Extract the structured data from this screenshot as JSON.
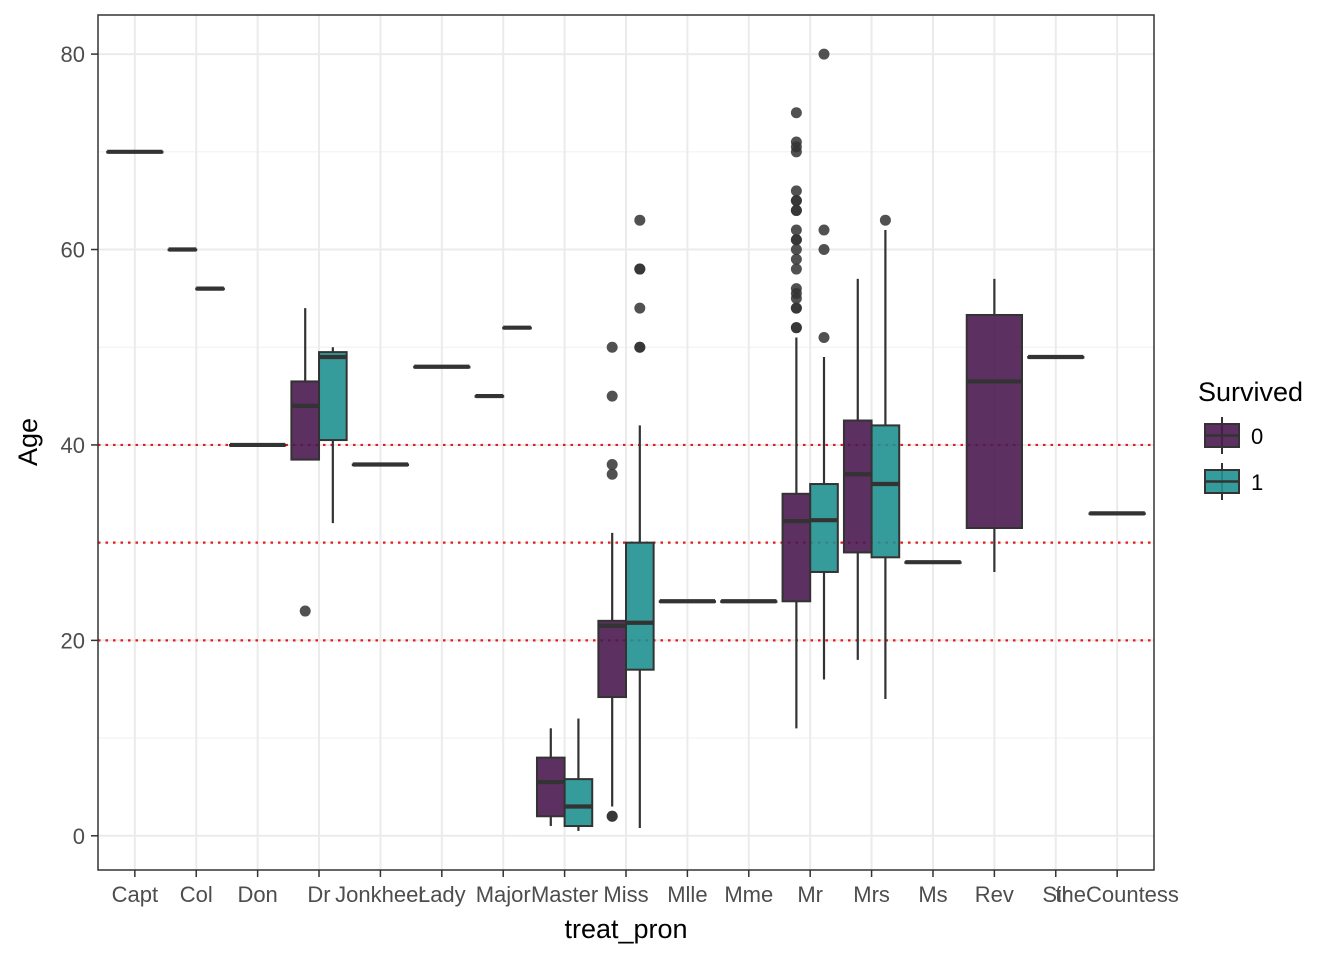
{
  "chart_data": {
    "type": "boxplot",
    "xlabel": "treat_pron",
    "ylabel": "Age",
    "ylim": [
      -3.5,
      84
    ],
    "yticks": [
      0,
      20,
      40,
      60,
      80
    ],
    "grid": true,
    "legend_position": "right",
    "legend_title": "Survived",
    "colors": {
      "0": "#4a1a4f",
      "1": "#1f9190",
      "hline": "#e41a1c",
      "box_line": "#333333"
    },
    "reference_lines": [
      20,
      30,
      40
    ],
    "categories": [
      "Capt",
      "Col",
      "Don",
      "Dr",
      "Jonkheer",
      "Lady",
      "Major",
      "Master",
      "Miss",
      "Mlle",
      "Mme",
      "Mr",
      "Mrs",
      "Ms",
      "Rev",
      "Sir",
      "theCountess"
    ],
    "series": [
      {
        "name": "0",
        "levels_present": [
          "Capt",
          "Col",
          "Don",
          "Dr",
          "Jonkheer",
          "Major",
          "Master",
          "Miss",
          "Mr",
          "Mrs",
          "Rev"
        ]
      },
      {
        "name": "1",
        "levels_present": [
          "Col",
          "Dr",
          "Lady",
          "Major",
          "Master",
          "Miss",
          "Mlle",
          "Mme",
          "Mr",
          "Mrs",
          "Ms",
          "Sir",
          "theCountess"
        ]
      }
    ],
    "boxes": [
      {
        "category": "Capt",
        "group": "0",
        "slot": "full",
        "min": 70,
        "q1": 70,
        "median": 70,
        "q3": 70,
        "max": 70,
        "outliers": []
      },
      {
        "category": "Col",
        "group": "0",
        "slot": "left",
        "min": 60,
        "q1": 60,
        "median": 60,
        "q3": 60,
        "max": 60,
        "outliers": []
      },
      {
        "category": "Col",
        "group": "1",
        "slot": "right",
        "min": 56,
        "q1": 56,
        "median": 56,
        "q3": 56,
        "max": 56,
        "outliers": []
      },
      {
        "category": "Don",
        "group": "0",
        "slot": "full",
        "min": 40,
        "q1": 40,
        "median": 40,
        "q3": 40,
        "max": 40,
        "outliers": []
      },
      {
        "category": "Dr",
        "group": "0",
        "slot": "left",
        "min": 38.5,
        "q1": 38.5,
        "median": 44,
        "q3": 46.5,
        "max": 54,
        "outliers": [
          23
        ]
      },
      {
        "category": "Dr",
        "group": "1",
        "slot": "right",
        "min": 32,
        "q1": 40.5,
        "median": 49,
        "q3": 49.5,
        "max": 50,
        "outliers": []
      },
      {
        "category": "Jonkheer",
        "group": "0",
        "slot": "full",
        "min": 38,
        "q1": 38,
        "median": 38,
        "q3": 38,
        "max": 38,
        "outliers": []
      },
      {
        "category": "Lady",
        "group": "1",
        "slot": "full",
        "min": 48,
        "q1": 48,
        "median": 48,
        "q3": 48,
        "max": 48,
        "outliers": []
      },
      {
        "category": "Major",
        "group": "0",
        "slot": "left",
        "min": 45,
        "q1": 45,
        "median": 45,
        "q3": 45,
        "max": 45,
        "outliers": []
      },
      {
        "category": "Major",
        "group": "1",
        "slot": "right",
        "min": 52,
        "q1": 52,
        "median": 52,
        "q3": 52,
        "max": 52,
        "outliers": []
      },
      {
        "category": "Master",
        "group": "0",
        "slot": "left",
        "min": 1,
        "q1": 2,
        "median": 5.5,
        "q3": 8,
        "max": 11,
        "outliers": []
      },
      {
        "category": "Master",
        "group": "1",
        "slot": "right",
        "min": 0.5,
        "q1": 1,
        "median": 3,
        "q3": 5.8,
        "max": 12,
        "outliers": []
      },
      {
        "category": "Miss",
        "group": "0",
        "slot": "left",
        "min": 3,
        "q1": 14.2,
        "median": 21.5,
        "q3": 22,
        "max": 31,
        "outliers": [
          2,
          2,
          37,
          38,
          45,
          50
        ]
      },
      {
        "category": "Miss",
        "group": "1",
        "slot": "right",
        "min": 0.8,
        "q1": 17,
        "median": 21.8,
        "q3": 30,
        "max": 42,
        "outliers": [
          50,
          50,
          54,
          58,
          58,
          63
        ]
      },
      {
        "category": "Mlle",
        "group": "1",
        "slot": "full",
        "min": 24,
        "q1": 24,
        "median": 24,
        "q3": 24,
        "max": 24,
        "outliers": []
      },
      {
        "category": "Mme",
        "group": "1",
        "slot": "full",
        "min": 24,
        "q1": 24,
        "median": 24,
        "q3": 24,
        "max": 24,
        "outliers": []
      },
      {
        "category": "Mr",
        "group": "0",
        "slot": "left",
        "min": 11,
        "q1": 24,
        "median": 32.2,
        "q3": 35,
        "max": 51,
        "outliers": [
          52,
          52,
          54,
          54,
          55,
          55.5,
          56,
          58,
          59,
          60,
          61,
          61,
          62,
          64,
          64,
          65,
          65,
          66,
          70,
          70.5,
          71,
          74
        ]
      },
      {
        "category": "Mr",
        "group": "1",
        "slot": "right",
        "min": 16,
        "q1": 27,
        "median": 32.3,
        "q3": 36,
        "max": 49,
        "outliers": [
          51,
          60,
          62,
          80
        ]
      },
      {
        "category": "Mrs",
        "group": "0",
        "slot": "left",
        "min": 18,
        "q1": 29,
        "median": 37,
        "q3": 42.5,
        "max": 57,
        "outliers": []
      },
      {
        "category": "Mrs",
        "group": "1",
        "slot": "right",
        "min": 14,
        "q1": 28.5,
        "median": 36,
        "q3": 42,
        "max": 62,
        "outliers": [
          63
        ]
      },
      {
        "category": "Ms",
        "group": "1",
        "slot": "full",
        "min": 28,
        "q1": 28,
        "median": 28,
        "q3": 28,
        "max": 28,
        "outliers": []
      },
      {
        "category": "Rev",
        "group": "0",
        "slot": "full",
        "min": 27,
        "q1": 31.5,
        "median": 46.5,
        "q3": 53.3,
        "max": 57,
        "outliers": []
      },
      {
        "category": "Sir",
        "group": "1",
        "slot": "full",
        "min": 49,
        "q1": 49,
        "median": 49,
        "q3": 49,
        "max": 49,
        "outliers": []
      },
      {
        "category": "theCountess",
        "group": "1",
        "slot": "full",
        "min": 33,
        "q1": 33,
        "median": 33,
        "q3": 33,
        "max": 33,
        "outliers": []
      }
    ]
  }
}
